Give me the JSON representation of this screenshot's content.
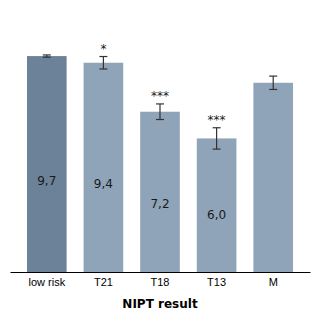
{
  "chart_data": {
    "type": "bar",
    "xlabel": "NIPT result",
    "categories": [
      "low risk",
      "T21",
      "T18",
      "T13",
      "M"
    ],
    "values": [
      9.7,
      9.4,
      7.2,
      6.0,
      8.5
    ],
    "errors": [
      0.05,
      0.28,
      0.35,
      0.48,
      0.3
    ],
    "colors": [
      "#6b8299",
      "#8fa4b8",
      "#8fa4b8",
      "#8fa4b8",
      "#8fa4b8"
    ],
    "data_labels": true,
    "value_labels": [
      "9,7",
      "9,4",
      "7,2",
      "6,0",
      null
    ],
    "annotations": [
      null,
      "*",
      "***",
      "***",
      null
    ],
    "ylim": [
      0,
      11.5
    ],
    "tick_labels": "x"
  }
}
